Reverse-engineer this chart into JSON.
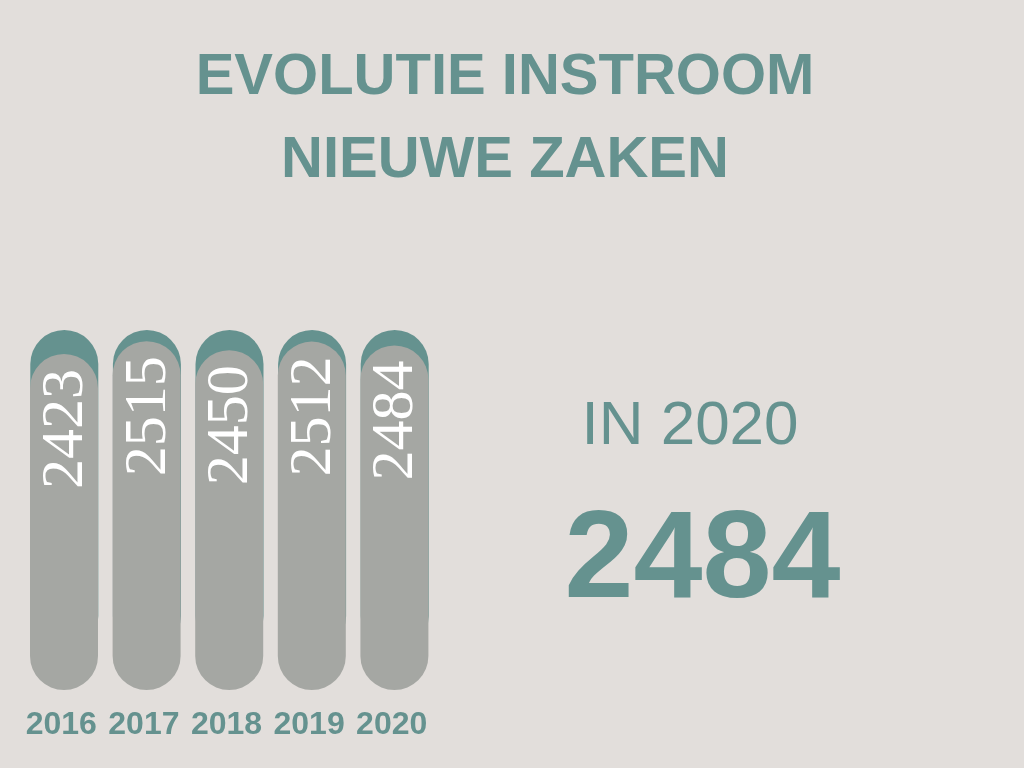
{
  "chart_data": {
    "type": "bar",
    "title": "EVOLUTIE INSTROOM NIEUWE ZAKEN",
    "categories": [
      "2016",
      "2017",
      "2018",
      "2019",
      "2020"
    ],
    "values": [
      2423,
      2515,
      2450,
      2512,
      2484
    ],
    "color": "#a5a7a3",
    "data_labels": true,
    "tick_labels": "x",
    "annotations": [
      "IN 2020",
      "2484"
    ]
  }
}
